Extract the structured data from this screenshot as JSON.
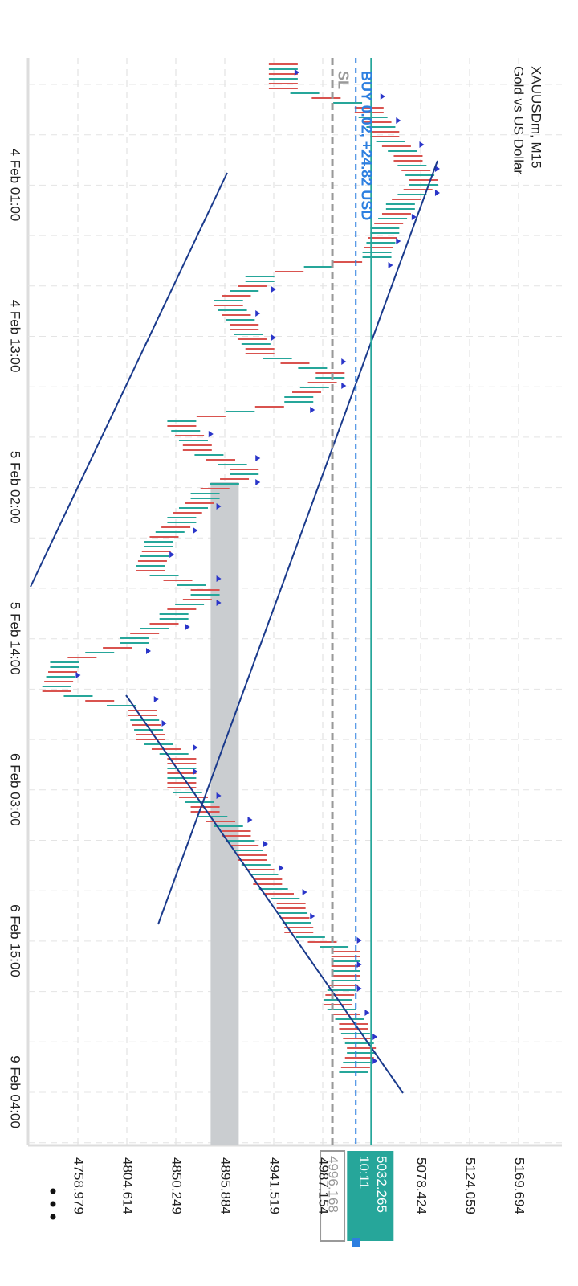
{
  "header": {
    "symbol": "XAUUSDm, M15",
    "description": "Gold vs US Dollar"
  },
  "chart": {
    "price_ticks": [
      4758.979,
      4804.614,
      4850.249,
      4895.884,
      4941.519,
      4987.154,
      5078.424,
      5124.059,
      5169.694
    ],
    "time_labels": [
      "4 Feb 01:00",
      "4 Feb 13:00",
      "5 Feb 02:00",
      "5 Feb 14:00",
      "6 Feb 03:00",
      "6 Feb 15:00",
      "9 Feb 04:00"
    ],
    "prices": [
      4950.4,
      5030.4,
      5045.0,
      5066.8,
      5081.4,
      5059.6,
      5045.0,
      5037.7,
      4928.6,
      4899.4,
      4914.0,
      4928.6,
      4994.1,
      4964.9,
      4855.8,
      4870.3,
      4914.0,
      4877.6,
      4855.8,
      4833.9,
      4826.7,
      4877.6,
      4848.5,
      4812.1,
      4746.6,
      4739.3,
      4819.4,
      4826.7,
      4855.8,
      4855.8,
      4877.6,
      4906.7,
      4921.3,
      4935.8,
      4957.7,
      4964.9,
      5008.6,
      5008.6,
      5001.3,
      5015.9,
      5023.2,
      5015.9
    ],
    "zone": [
      4882.7,
      4908.9
    ],
    "sl": {
      "label": "SL",
      "price": 4996.168,
      "tag": "4996.168"
    },
    "order": {
      "label": "BUY 0.02, +24.82 USD",
      "price": 5018.0
    },
    "current": {
      "price": 5032.265,
      "tag": "5032.265",
      "countdown": "10:11"
    }
  }
}
